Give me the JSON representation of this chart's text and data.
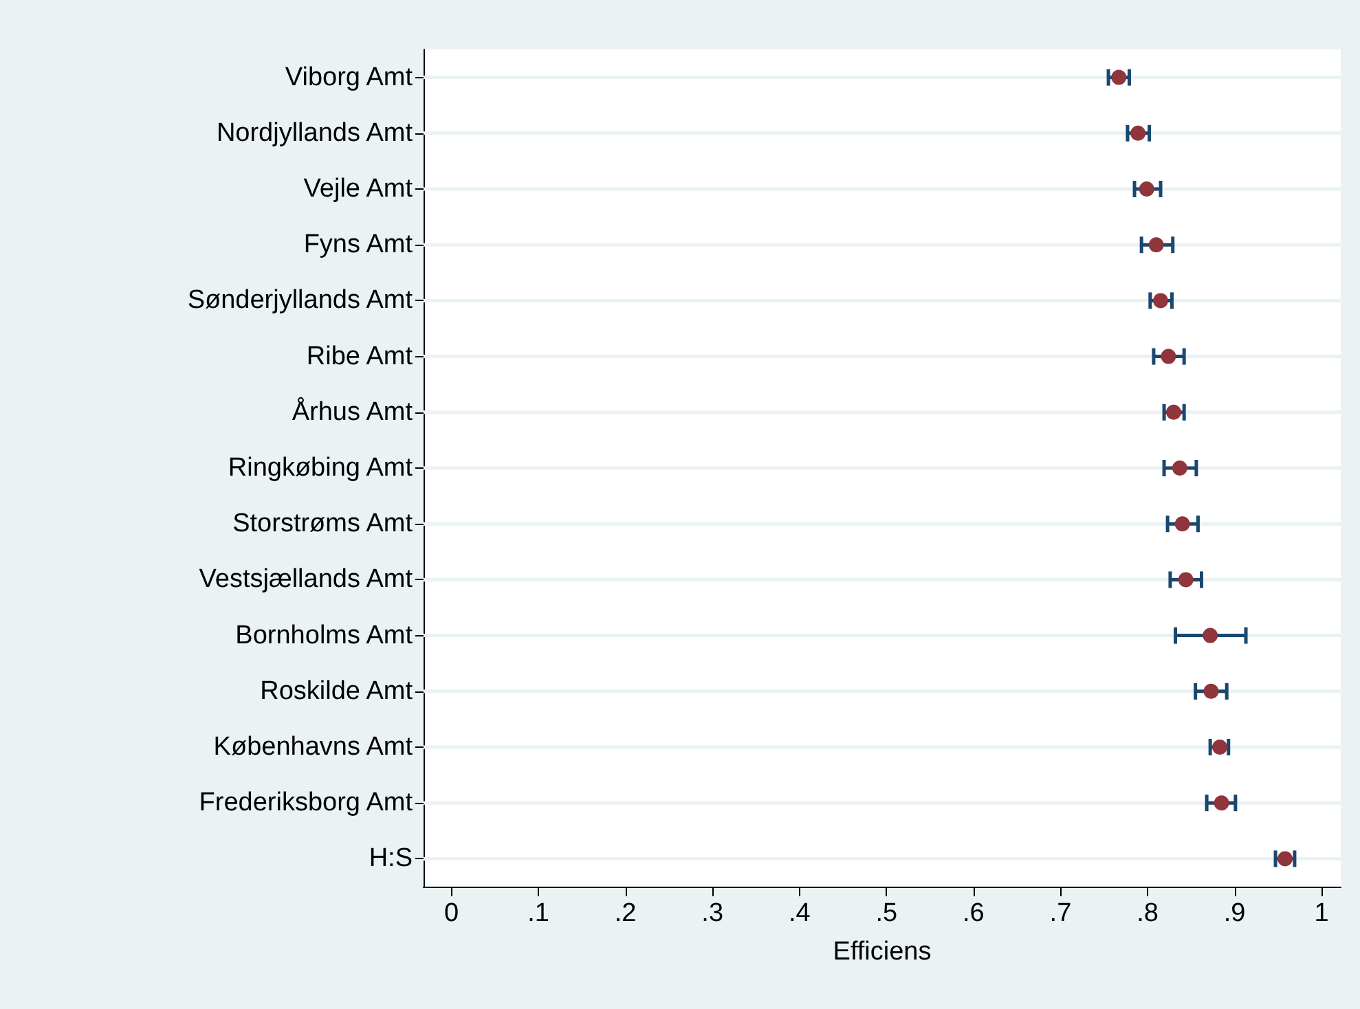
{
  "chart_data": {
    "type": "scatter",
    "orientation": "horizontal",
    "xlabel": "Efficiens",
    "categories": [
      "Viborg Amt",
      "Nordjyllands Amt",
      "Vejle Amt",
      "Fyns Amt",
      "Sønderjyllands Amt",
      "Ribe Amt",
      "Århus Amt",
      "Ringkøbing Amt",
      "Storstrøms Amt",
      "Vestsjællands Amt",
      "Bornholms Amt",
      "Roskilde Amt",
      "Københavns Amt",
      "Frederiksborg Amt",
      "H:S"
    ],
    "values": [
      0.767,
      0.789,
      0.799,
      0.81,
      0.815,
      0.824,
      0.83,
      0.837,
      0.84,
      0.844,
      0.872,
      0.873,
      0.883,
      0.885,
      0.958
    ],
    "errors": [
      [
        0.755,
        0.779
      ],
      [
        0.777,
        0.802
      ],
      [
        0.785,
        0.815
      ],
      [
        0.793,
        0.829
      ],
      [
        0.803,
        0.828
      ],
      [
        0.807,
        0.842
      ],
      [
        0.819,
        0.842
      ],
      [
        0.819,
        0.856
      ],
      [
        0.823,
        0.858
      ],
      [
        0.826,
        0.862
      ],
      [
        0.832,
        0.913
      ],
      [
        0.855,
        0.891
      ],
      [
        0.872,
        0.893
      ],
      [
        0.868,
        0.901
      ],
      [
        0.947,
        0.969
      ]
    ],
    "color": "#90353b",
    "marker": "circle",
    "xlim": [
      -0.032,
      1.022
    ],
    "xticks": [
      0,
      {
        "value": 0.1,
        "label": ".1"
      },
      {
        "value": 0.2,
        "label": ".2"
      },
      {
        "value": 0.3,
        "label": ".3"
      },
      {
        "value": 0.4,
        "label": ".4"
      },
      {
        "value": 0.5,
        "label": ".5"
      },
      {
        "value": 0.6,
        "label": ".6"
      },
      {
        "value": 0.7,
        "label": ".7"
      },
      {
        "value": 0.8,
        "label": ".8"
      },
      {
        "value": 0.9,
        "label": ".9"
      },
      1
    ],
    "grid": "y"
  }
}
